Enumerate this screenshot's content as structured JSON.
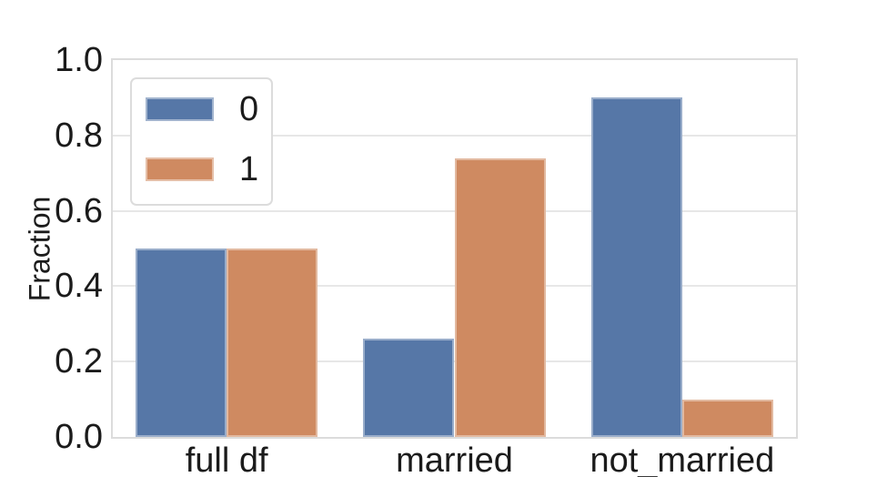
{
  "chart_data": {
    "type": "bar",
    "categories": [
      "full df",
      "married",
      "not_married"
    ],
    "series": [
      {
        "name": "0",
        "color": "#5677A7",
        "values": [
          0.5,
          0.26,
          0.9
        ]
      },
      {
        "name": "1",
        "color": "#CF8A61",
        "values": [
          0.5,
          0.74,
          0.1
        ]
      }
    ],
    "ylabel": "Fraction",
    "ylim": [
      0,
      1
    ],
    "ytick_labels": [
      "0.0",
      "0.2",
      "0.4",
      "0.6",
      "0.8",
      "1.0"
    ],
    "grid": "horizontal",
    "legend": {
      "position": "upper-left",
      "entries": [
        "0",
        "1"
      ]
    }
  },
  "style": {
    "background": "#ffffff",
    "grid_color": "#e7e7e7",
    "spine_color": "#dcdcdc",
    "text_color": "#1b1b1b"
  }
}
